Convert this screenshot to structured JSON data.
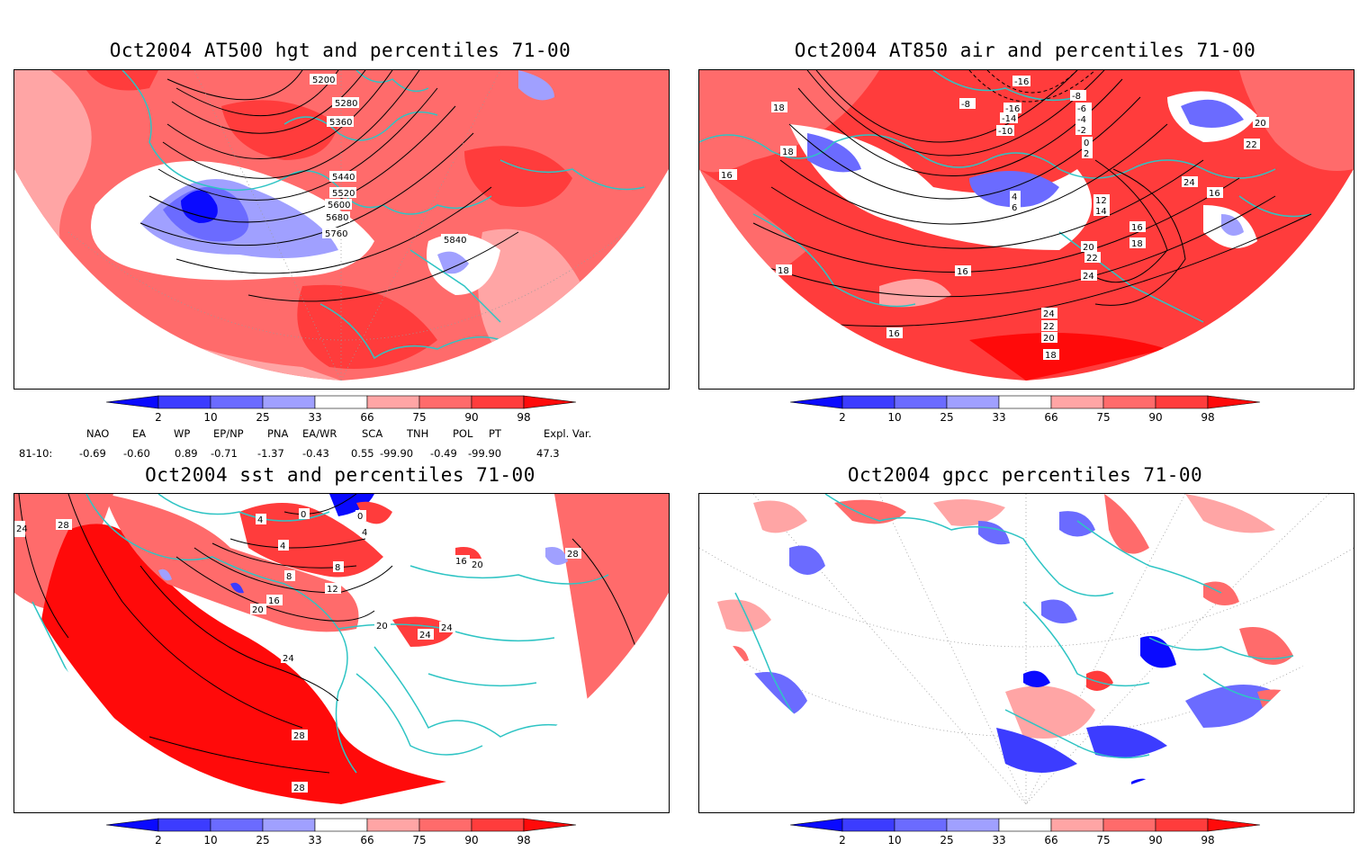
{
  "panels": [
    {
      "title": "Oct2004 AT500 hgt and percentiles 71-00",
      "contour_labels": [
        "5200",
        "5280",
        "5360",
        "5440",
        "5520",
        "5600",
        "5680",
        "5760",
        "5840"
      ]
    },
    {
      "title": "Oct2004 AT850 air and percentiles 71-00",
      "contour_labels": [
        "-16",
        "-8",
        "-6",
        "-4",
        "-2",
        "-16",
        "-14",
        "-10",
        "-8",
        "0",
        "2",
        "4",
        "6",
        "12",
        "14",
        "16",
        "18",
        "18",
        "18",
        "16",
        "16",
        "20",
        "22",
        "24",
        "24",
        "22",
        "20",
        "18",
        "16",
        "16",
        "18",
        "20",
        "22",
        "24"
      ]
    },
    {
      "title": "Oct2004 sst and percentiles 71-00",
      "contour_labels": [
        "0",
        "0",
        "4",
        "4",
        "4",
        "8",
        "8",
        "12",
        "16",
        "20",
        "20",
        "24",
        "24",
        "24",
        "28",
        "28",
        "28",
        "28",
        "16",
        "20",
        "24"
      ]
    },
    {
      "title": "Oct2004 gpcc percentiles 71-00",
      "contour_labels": []
    }
  ],
  "colorbar": {
    "ticks": [
      "2",
      "10",
      "25",
      "33",
      "66",
      "75",
      "90",
      "98"
    ],
    "colors": [
      "#0a0aff",
      "#3c3cff",
      "#6b6bff",
      "#a0a0ff",
      "#ffffff",
      "#ffa5a5",
      "#ff6b6b",
      "#ff3c3c",
      "#ff0a0a"
    ]
  },
  "teleconnection": {
    "headers": [
      "NAO",
      "EA",
      "WP",
      "EP/NP",
      "PNA",
      "EA/WR",
      "SCA",
      "TNH",
      "POL",
      "PT",
      "Expl. Var."
    ],
    "row_label": "81-10:",
    "values": [
      "-0.69",
      "-0.60",
      "0.89",
      "-0.71",
      "-1.37",
      "-0.43",
      "0.55",
      "-99.90",
      "-0.49",
      "-99.90",
      "47.3"
    ]
  },
  "colors": {
    "coast": "#2ec4c4",
    "contour": "#000000",
    "grid": "#9a9a9a"
  }
}
